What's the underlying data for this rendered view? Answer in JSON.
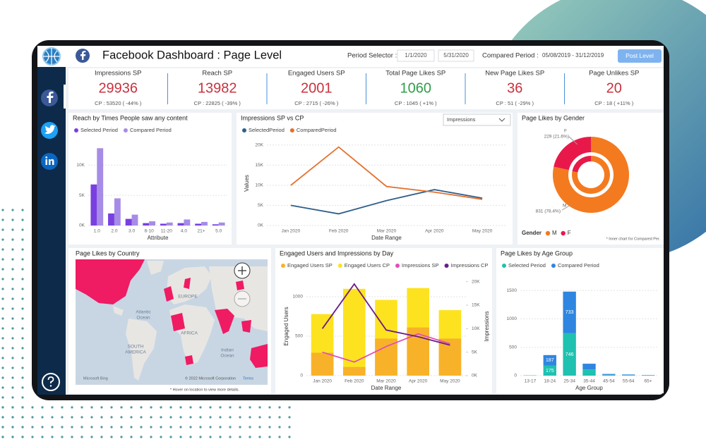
{
  "header": {
    "title": "Facebook Dashboard : Page Level",
    "period_label": "Period Selector :",
    "start_date": "1/1/2020",
    "end_date": "5/31/2020",
    "compared_label": "Compared Period :",
    "compared_range": "05/08/2019 - 31/12/2019",
    "button": "Post Level"
  },
  "kpis": [
    {
      "label": "Impressions SP",
      "value": "29936",
      "cp": "CP : 53520 ( -44% )",
      "color": "#c8323f"
    },
    {
      "label": "Reach SP",
      "value": "13982",
      "cp": "CP : 22825 ( -39% )",
      "color": "#c8323f"
    },
    {
      "label": "Engaged Users SP",
      "value": "2001",
      "cp": "CP : 2715 ( -26% )",
      "color": "#c8323f"
    },
    {
      "label": "Total Page Likes SP",
      "value": "1060",
      "cp": "CP : 1045 ( +1% )",
      "color": "#2f9e49"
    },
    {
      "label": "New Page Likes SP",
      "value": "36",
      "cp": "CP : 51 ( -29% )",
      "color": "#c8323f"
    },
    {
      "label": "Page Unlikes SP",
      "value": "20",
      "cp": "CP : 18 ( +11% )",
      "color": "#c8323f"
    }
  ],
  "chart_data": [
    {
      "type": "bar",
      "title": "Reach by Times People saw any content",
      "categories": [
        "1.0",
        "2.0",
        "3.0",
        "6-10",
        "11-20",
        "4.0",
        "21+",
        "5.0"
      ],
      "series": [
        {
          "name": "Selected Period",
          "color": "#7a3fe0",
          "values": [
            6800,
            2000,
            1100,
            400,
            300,
            400,
            300,
            200
          ]
        },
        {
          "name": "Compared Period",
          "color": "#a68ce6",
          "values": [
            12800,
            4500,
            1800,
            700,
            500,
            1000,
            600,
            500
          ]
        }
      ],
      "ylim": [
        0,
        14000
      ],
      "yticks": [
        {
          "value": 0,
          "label": "0K"
        },
        {
          "value": 5000,
          "label": "5K"
        },
        {
          "value": 10000,
          "label": "10K"
        }
      ],
      "x_label": "Attribute",
      "grid": true
    },
    {
      "type": "line",
      "title": "Impressions SP vs CP",
      "dropdown": "Impressions",
      "categories": [
        "Jan 2020",
        "Feb 2020",
        "Mar 2020",
        "Apr 2020",
        "May 2020"
      ],
      "series": [
        {
          "name": "SelectedPeriod",
          "color": "#2f5f8a",
          "values": [
            5000,
            2900,
            6200,
            8900,
            6800
          ]
        },
        {
          "name": "ComparedPeriod",
          "color": "#e3702b",
          "values": [
            10000,
            19500,
            9700,
            8300,
            6500
          ]
        }
      ],
      "ylim": [
        0,
        21000
      ],
      "yticks": [
        {
          "value": 0,
          "label": "0K"
        },
        {
          "value": 5000,
          "label": "5K"
        },
        {
          "value": 10000,
          "label": "10K"
        },
        {
          "value": 15000,
          "label": "15K"
        },
        {
          "value": 20000,
          "label": "20K"
        }
      ],
      "x_label": "Date Range",
      "y_label": "Values",
      "grid": true
    },
    {
      "type": "donut",
      "title": "Page Likes by Gender",
      "legend_title": "Gender",
      "categories": [
        "M",
        "F"
      ],
      "colors": [
        "#f47a20",
        "#e8194a"
      ],
      "values": [
        831,
        229
      ],
      "value_labels": [
        "831 (78.4%)",
        "229 (21.6%)"
      ],
      "inner_values": [
        815,
        230
      ],
      "note": "* Inner chart for Compared Per."
    },
    {
      "type": "combo",
      "title": "Engaged Users and Impressions by Day",
      "categories": [
        "Jan 2020",
        "Feb 2020",
        "Mar 2020",
        "Apr 2020",
        "May 2020"
      ],
      "series": [
        {
          "name": "Engaged Users SP",
          "color": "#f8b22a",
          "values": [
            290,
            110,
            470,
            610,
            470
          ]
        },
        {
          "name": "Engaged Users CP",
          "color": "#fde31f",
          "values": [
            780,
            1100,
            960,
            1110,
            830
          ]
        },
        {
          "name": "Impressions SP",
          "color": "#e04fb6",
          "values": [
            5000,
            2900,
            6200,
            8900,
            6800
          ],
          "axis": "y2"
        },
        {
          "name": "Impressions CP",
          "color": "#6a1b8a",
          "values": [
            10000,
            19500,
            9700,
            8300,
            6500
          ],
          "axis": "y2"
        }
      ],
      "ylim": [
        0,
        1250
      ],
      "yticks": [
        0,
        500,
        1000
      ],
      "y2lim": [
        0,
        21000
      ],
      "y2ticks": [
        {
          "value": 0,
          "label": "0K"
        },
        {
          "value": 5000,
          "label": "5K"
        },
        {
          "value": 10000,
          "label": "10K"
        },
        {
          "value": 15000,
          "label": "15K"
        },
        {
          "value": 20000,
          "label": "20K"
        }
      ],
      "x_label": "Date Range",
      "y_label": "Engaged Users",
      "y2_label": "Impressions",
      "grid": true
    },
    {
      "type": "stacked_bar",
      "title": "Page Likes by Age Group",
      "categories": [
        "13-17",
        "18-24",
        "25-34",
        "35-44",
        "45-54",
        "55-64",
        "65+"
      ],
      "series": [
        {
          "name": "Selected Period",
          "color": "#1fc1b0",
          "values": [
            3,
            175,
            746,
            110,
            15,
            10,
            5
          ],
          "value_labels": [
            null,
            "175",
            "746",
            null,
            null,
            null,
            null
          ]
        },
        {
          "name": "Compared Period",
          "color": "#2e86e0",
          "values": [
            3,
            187,
            733,
            100,
            15,
            10,
            5
          ],
          "value_labels": [
            null,
            "187",
            "733",
            null,
            null,
            null,
            null
          ]
        }
      ],
      "ylim": [
        0,
        1650
      ],
      "yticks": [
        0,
        500,
        1000,
        1500
      ],
      "x_label": "Age Group",
      "grid": true
    }
  ],
  "map": {
    "title": "Page Likes by Country",
    "labels": [
      "EUROPE",
      "Atlantic",
      "Ocean",
      "AFRICA",
      "SOUTH",
      "AMERICA",
      "Indian",
      "Ocean"
    ],
    "bing": "Microsoft Bing",
    "copyright": "© 2022 Microsoft Corporation",
    "terms": "Terms",
    "note": "* Hover on location to view more details."
  }
}
